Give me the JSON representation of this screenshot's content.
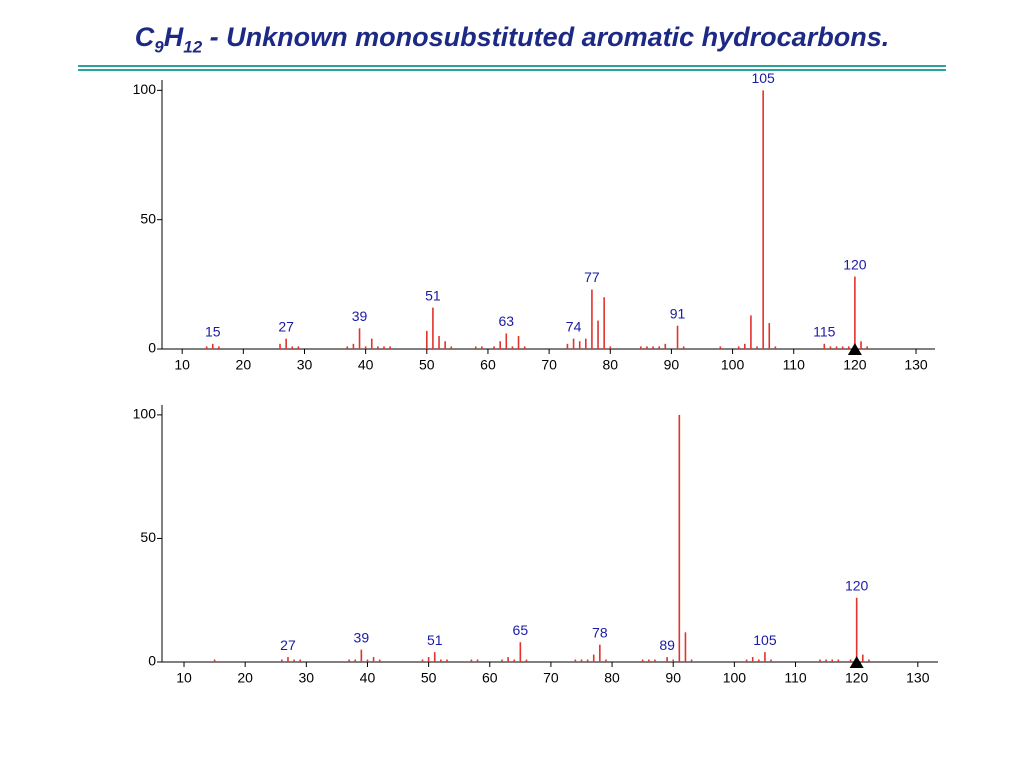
{
  "title": {
    "c": "C",
    "c_sub": "9",
    "h": "H",
    "h_sub": "12",
    "rest": " - Unknown monosubstituted aromatic hydrocarbons."
  },
  "chart_data": [
    {
      "type": "bar",
      "color": "#e3312b",
      "label_color": "#1a1aa8",
      "x": [
        14,
        15,
        16,
        26,
        27,
        28,
        29,
        37,
        38,
        39,
        40,
        41,
        42,
        43,
        44,
        50,
        51,
        52,
        53,
        54,
        58,
        59,
        61,
        62,
        63,
        64,
        65,
        66,
        73,
        74,
        75,
        76,
        77,
        78,
        79,
        80,
        85,
        86,
        87,
        88,
        89,
        91,
        92,
        98,
        101,
        102,
        103,
        104,
        105,
        106,
        107,
        115,
        116,
        117,
        118,
        119,
        120,
        121,
        122
      ],
      "values": [
        1,
        2,
        1,
        2,
        4,
        1,
        1,
        1,
        2,
        8,
        1,
        4,
        1,
        1,
        1,
        7,
        16,
        5,
        3,
        1,
        1,
        1,
        1,
        3,
        6,
        1,
        5,
        1,
        2,
        4,
        3,
        4,
        23,
        11,
        20,
        1,
        1,
        1,
        1,
        1,
        2,
        9,
        1,
        1,
        1,
        2,
        13,
        1,
        100,
        10,
        1,
        2,
        1,
        1,
        1,
        1,
        28,
        3,
        1
      ],
      "annotations": [
        15,
        27,
        39,
        51,
        63,
        74,
        77,
        91,
        105,
        115,
        120
      ],
      "molecular_ion": 120,
      "xlim": [
        6.7,
        133.1
      ],
      "xticks": [
        10,
        20,
        30,
        40,
        50,
        60,
        70,
        80,
        90,
        100,
        110,
        120,
        130
      ],
      "ylim": [
        0,
        104
      ],
      "yticks": [
        0,
        50,
        100
      ]
    },
    {
      "type": "bar",
      "color": "#e3312b",
      "label_color": "#1a1aa8",
      "x": [
        15,
        26,
        27,
        28,
        29,
        37,
        38,
        39,
        40,
        41,
        42,
        49,
        50,
        51,
        52,
        53,
        57,
        58,
        62,
        63,
        64,
        65,
        66,
        74,
        75,
        76,
        77,
        78,
        79,
        85,
        86,
        87,
        89,
        90,
        91,
        92,
        93,
        102,
        103,
        104,
        105,
        106,
        114,
        115,
        116,
        117,
        119,
        120,
        121,
        122
      ],
      "values": [
        1,
        1,
        2,
        1,
        1,
        1,
        1,
        5,
        1,
        2,
        1,
        1,
        2,
        4,
        1,
        1,
        1,
        1,
        1,
        2,
        1,
        8,
        1,
        1,
        1,
        1,
        3,
        7,
        1,
        1,
        1,
        1,
        2,
        1,
        100,
        12,
        1,
        1,
        2,
        1,
        4,
        1,
        1,
        1,
        1,
        1,
        1,
        26,
        3,
        1
      ],
      "annotations": [
        27,
        39,
        51,
        65,
        78,
        89,
        105,
        120
      ],
      "molecular_ion": 120,
      "xlim": [
        6.4,
        133.3
      ],
      "xticks": [
        10,
        20,
        30,
        40,
        50,
        60,
        70,
        80,
        90,
        100,
        110,
        120,
        130
      ],
      "ylim": [
        0,
        104
      ],
      "yticks": [
        0,
        50,
        100
      ]
    }
  ]
}
